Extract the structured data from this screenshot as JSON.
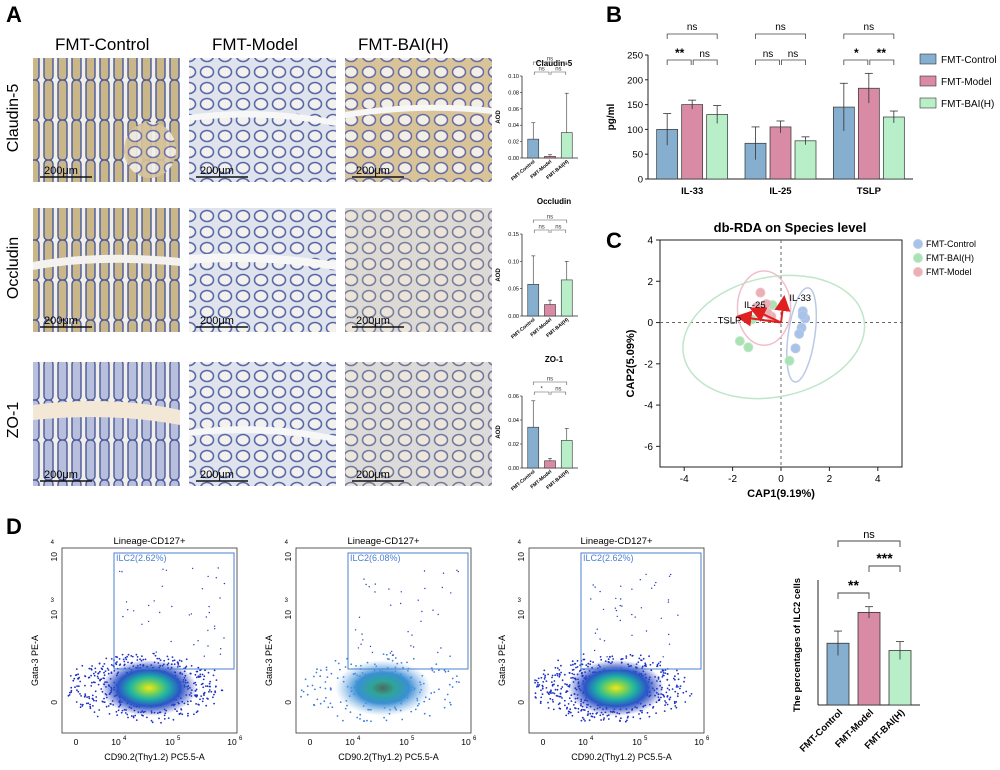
{
  "colors": {
    "control": "#86AECF",
    "model": "#D98AA5",
    "bai": "#B8EEC8",
    "bar_edge": "#333333",
    "histology_bg": "#c7cde0",
    "gate": "#4A7FD0",
    "ellipse_control": "#B9C9E6",
    "ellipse_bai": "#BEE6C9",
    "ellipse_model": "#F0BFC9",
    "arrow": "#E02020"
  },
  "panelA": {
    "letter": "A",
    "columns": [
      "FMT-Control",
      "FMT-Model",
      "FMT-BAI(H)"
    ],
    "rows": [
      "Claudin-5",
      "Occludin",
      "ZO-1"
    ],
    "scalebar": "200μm",
    "charts": [
      {
        "type": "bar",
        "title": "Claudin-5",
        "ylabel": "AOD",
        "categories": [
          "FMT-Control",
          "FMT-Model",
          "FMT-BAI(H)"
        ],
        "values": [
          0.023,
          0.002,
          0.031
        ],
        "errors": [
          0.02,
          0.002,
          0.048
        ],
        "ylim": [
          0,
          0.1
        ],
        "yticks": [
          "0.00",
          "0.02",
          "0.04",
          "0.06",
          "0.08",
          "0.10"
        ],
        "sig": [
          {
            "a": 0,
            "b": 1,
            "label": "ns"
          },
          {
            "a": 1,
            "b": 2,
            "label": "ns"
          },
          {
            "a": 0,
            "b": 2,
            "label": "ns"
          }
        ]
      },
      {
        "type": "bar",
        "title": "Occludin",
        "ylabel": "AOD",
        "categories": [
          "FMT-Control",
          "FMT-Model",
          "FMT-BAI(H)"
        ],
        "values": [
          0.058,
          0.021,
          0.066
        ],
        "errors": [
          0.052,
          0.008,
          0.034
        ],
        "ylim": [
          0,
          0.15
        ],
        "yticks": [
          "0.00",
          "0.05",
          "0.10",
          "0.15"
        ],
        "sig": [
          {
            "a": 0,
            "b": 1,
            "label": "ns"
          },
          {
            "a": 1,
            "b": 2,
            "label": "ns"
          },
          {
            "a": 0,
            "b": 2,
            "label": "ns"
          }
        ]
      },
      {
        "type": "bar",
        "title": "ZO-1",
        "ylabel": "AOD",
        "categories": [
          "FMT-Control",
          "FMT-Model",
          "FMT-BAI(H)"
        ],
        "values": [
          0.034,
          0.006,
          0.023
        ],
        "errors": [
          0.022,
          0.002,
          0.01
        ],
        "ylim": [
          0,
          0.06
        ],
        "yticks": [
          "0.00",
          "0.02",
          "0.04",
          "0.06"
        ],
        "sig": [
          {
            "a": 0,
            "b": 1,
            "label": "*"
          },
          {
            "a": 1,
            "b": 2,
            "label": "ns"
          },
          {
            "a": 0,
            "b": 2,
            "label": "ns"
          }
        ]
      }
    ]
  },
  "chart_data": [
    {
      "type": "bar",
      "panel": "B",
      "categories": [
        "IL-33",
        "IL-25",
        "TSLP"
      ],
      "ylabel": "pg/ml",
      "ylim": [
        0,
        250
      ],
      "yticks": [
        "0",
        "50",
        "100",
        "150",
        "200",
        "250"
      ],
      "series": [
        {
          "name": "FMT-Control",
          "values": [
            100,
            72,
            145
          ],
          "errors": [
            32,
            33,
            48
          ]
        },
        {
          "name": "FMT-Model",
          "values": [
            150,
            105,
            183
          ],
          "errors": [
            9,
            12,
            30
          ]
        },
        {
          "name": "FMT-BAI(H)",
          "values": [
            130,
            77,
            125
          ],
          "errors": [
            18,
            8,
            12
          ]
        }
      ],
      "legend": [
        "FMT-Control",
        "FMT-Model",
        "FMT-BAI(H)"
      ],
      "sig": [
        {
          "cat": 0,
          "rows": [
            [
              "ns"
            ],
            [
              "**",
              "ns"
            ]
          ]
        },
        {
          "cat": 1,
          "rows": [
            [
              "ns"
            ],
            [
              "ns",
              "ns"
            ]
          ]
        },
        {
          "cat": 2,
          "rows": [
            [
              "ns"
            ],
            [
              "*",
              "**"
            ]
          ]
        }
      ]
    },
    {
      "type": "scatter",
      "panel": "C",
      "title": "db-RDA on Species level",
      "xlabel": "CAP1(9.19%)",
      "ylabel": "CAP2(5.09%)",
      "xlim": [
        -5,
        5
      ],
      "ylim": [
        -7,
        4
      ],
      "xticks": [
        -4,
        -2,
        0,
        2,
        4
      ],
      "yticks": [
        -6,
        -4,
        -2,
        0,
        2,
        4
      ],
      "legend": [
        "FMT-Control",
        "FMT-BAI(H)",
        "FMT-Model"
      ],
      "series": [
        {
          "name": "FMT-Control",
          "points": [
            [
              0.9,
              0.55
            ],
            [
              1.0,
              0.2
            ],
            [
              0.85,
              -0.25
            ],
            [
              0.75,
              -0.55
            ],
            [
              0.9,
              0.35
            ],
            [
              0.6,
              -1.25
            ]
          ]
        },
        {
          "name": "FMT-BAI(H)",
          "points": [
            [
              -1.7,
              -0.9
            ],
            [
              -1.35,
              -1.2
            ],
            [
              0.35,
              -1.85
            ],
            [
              -0.35,
              0.85
            ],
            [
              -0.75,
              0.7
            ],
            [
              -1.2,
              0.15
            ]
          ]
        },
        {
          "name": "FMT-Model",
          "points": [
            [
              -0.85,
              1.45
            ],
            [
              -0.6,
              0.9
            ],
            [
              -0.4,
              0.3
            ],
            [
              -0.7,
              0.5
            ],
            [
              -1.0,
              0.75
            ],
            [
              -0.55,
              0.45
            ]
          ]
        }
      ],
      "arrows": [
        {
          "label": "IL-25",
          "x": -1.0,
          "y": 0.55
        },
        {
          "label": "IL-33",
          "x": 0.1,
          "y": 0.95
        },
        {
          "label": "TSLP",
          "x": -1.55,
          "y": 0.25
        }
      ]
    },
    {
      "type": "bar",
      "panel": "D",
      "ylabel": "The percentages of ILC2 cells",
      "categories": [
        "FMT-Control",
        "FMT-Model",
        "FMT-BAI(H)"
      ],
      "values": [
        3.8,
        5.7,
        3.35
      ],
      "errors": [
        0.75,
        0.35,
        0.55
      ],
      "ylim": [
        0,
        8
      ],
      "sig": [
        {
          "a": 0,
          "b": 1,
          "label": "**"
        },
        {
          "a": 1,
          "b": 2,
          "label": "***"
        },
        {
          "a": 0,
          "b": 2,
          "label": "ns"
        }
      ]
    }
  ],
  "panelB": {
    "letter": "B"
  },
  "panelC": {
    "letter": "C"
  },
  "panelD": {
    "letter": "D",
    "plots": [
      {
        "gate_title": "Lineage-CD127+",
        "gate_label": "ILC2(2.62%)",
        "ylabel": "Gata-3 PE-A",
        "xlabel": "CD90.2(Thy1.2) PC5.5-A",
        "xticks": [
          "0",
          "10",
          "10",
          "10"
        ],
        "xexp": [
          "",
          "4",
          "5",
          "6"
        ],
        "yticks": [
          "0",
          "10",
          "10"
        ],
        "yexp": [
          "",
          "3",
          "4"
        ]
      },
      {
        "gate_title": "Lineage-CD127+",
        "gate_label": "ILC2(6.08%)",
        "ylabel": "Gata-3 PE-A",
        "xlabel": "CD90.2(Thy1.2) PC5.5-A",
        "xticks": [
          "0",
          "10",
          "10",
          "10"
        ],
        "xexp": [
          "",
          "4",
          "5",
          "6"
        ],
        "yticks": [
          "0",
          "10",
          "10"
        ],
        "yexp": [
          "",
          "3",
          "4"
        ]
      },
      {
        "gate_title": "Lineage-CD127+",
        "gate_label": "ILC2(2.62%)",
        "ylabel": "Gata-3 PE-A",
        "xlabel": "CD90.2(Thy1.2) PC5.5-A",
        "xticks": [
          "0",
          "10",
          "10",
          "10"
        ],
        "xexp": [
          "",
          "4",
          "5",
          "6"
        ],
        "yticks": [
          "0",
          "10",
          "10"
        ],
        "yexp": [
          "",
          "3",
          "4"
        ]
      }
    ]
  }
}
